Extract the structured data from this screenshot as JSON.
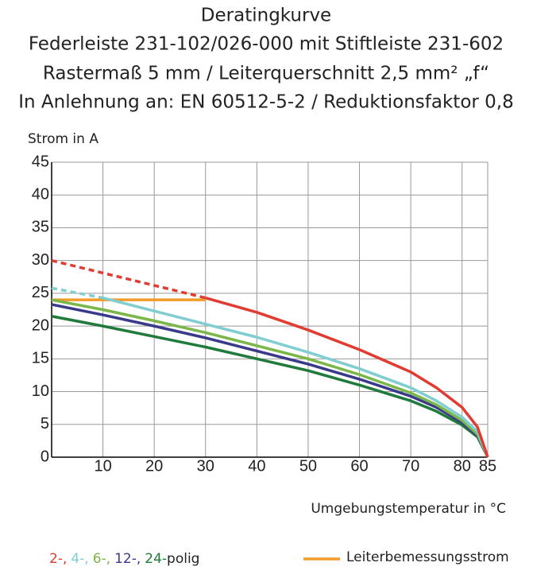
{
  "chart_data": {
    "type": "line",
    "title": [
      "Deratingkurve",
      "Federleiste 231-102/026-000 mit Stiftleiste 231-602",
      "Rastermaß 5 mm / Leiterquerschnitt 2,5 mm² „f“",
      "In Anlehnung an: EN 60512-5-2 / Reduktionsfaktor 0,8"
    ],
    "y_label": "Strom in A",
    "x_label": "Umgebungstemperatur in °C",
    "x": [
      0,
      10,
      20,
      30,
      40,
      50,
      60,
      70,
      75,
      80,
      83,
      85
    ],
    "series": [
      {
        "name": "2-,",
        "color": "#e03c31",
        "dash_until": 30,
        "values": [
          30,
          28.1,
          26.2,
          24.3,
          22.1,
          19.4,
          16.4,
          13.0,
          10.6,
          7.6,
          4.6,
          0
        ]
      },
      {
        "name": "4-,",
        "color": "#80cdd2",
        "dash_until": 10,
        "values": [
          25.8,
          24.3,
          22.3,
          20.3,
          18.3,
          16.0,
          13.5,
          10.6,
          8.6,
          6.1,
          3.9,
          0
        ]
      },
      {
        "name": "6-,",
        "color": "#7ab648",
        "values": [
          24,
          22.5,
          20.8,
          19.0,
          17.0,
          15.0,
          12.6,
          9.8,
          8.0,
          5.6,
          3.5,
          0
        ]
      },
      {
        "name": "12-,",
        "color": "#3a3a8c",
        "values": [
          23.3,
          21.7,
          20.0,
          18.2,
          16.2,
          14.2,
          11.9,
          9.3,
          7.6,
          5.3,
          3.3,
          0
        ]
      },
      {
        "name": "24-",
        "color": "#1f7a3c",
        "values": [
          21.5,
          20.0,
          18.4,
          16.8,
          15.0,
          13.2,
          11.0,
          8.6,
          7.0,
          4.9,
          3.1,
          0
        ]
      },
      {
        "name": "Leiterbemessungsstrom",
        "color": "#f39c2b",
        "x": [
          0,
          30
        ],
        "values": [
          24,
          24
        ]
      }
    ],
    "legend_suffix": "polig",
    "xlim": [
      0,
      85
    ],
    "ylim": [
      0,
      45
    ],
    "xticks": [
      10,
      20,
      30,
      40,
      50,
      60,
      70,
      80,
      85
    ],
    "yticks": [
      0,
      5,
      10,
      15,
      20,
      25,
      30,
      35,
      40,
      45
    ],
    "grid": true
  }
}
